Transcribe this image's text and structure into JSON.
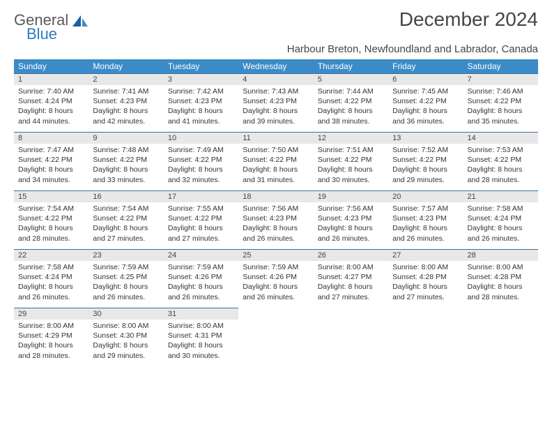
{
  "logo": {
    "line1": "General",
    "line2": "Blue"
  },
  "title": "December 2024",
  "subtitle": "Harbour Breton, Newfoundland and Labrador, Canada",
  "colors": {
    "header_bg": "#3b8bc8",
    "header_text": "#ffffff",
    "daynum_bg": "#e8e8e8",
    "daynum_border": "#3b6f9e",
    "body_text": "#333333",
    "logo_gray": "#5a5a5a",
    "logo_blue": "#2f7bbf"
  },
  "fonts": {
    "title_size_pt": 21,
    "subtitle_size_pt": 11,
    "header_size_pt": 9,
    "cell_size_pt": 8
  },
  "weekdays": [
    "Sunday",
    "Monday",
    "Tuesday",
    "Wednesday",
    "Thursday",
    "Friday",
    "Saturday"
  ],
  "weeks": [
    [
      {
        "n": "1",
        "sr": "Sunrise: 7:40 AM",
        "ss": "Sunset: 4:24 PM",
        "d1": "Daylight: 8 hours",
        "d2": "and 44 minutes."
      },
      {
        "n": "2",
        "sr": "Sunrise: 7:41 AM",
        "ss": "Sunset: 4:23 PM",
        "d1": "Daylight: 8 hours",
        "d2": "and 42 minutes."
      },
      {
        "n": "3",
        "sr": "Sunrise: 7:42 AM",
        "ss": "Sunset: 4:23 PM",
        "d1": "Daylight: 8 hours",
        "d2": "and 41 minutes."
      },
      {
        "n": "4",
        "sr": "Sunrise: 7:43 AM",
        "ss": "Sunset: 4:23 PM",
        "d1": "Daylight: 8 hours",
        "d2": "and 39 minutes."
      },
      {
        "n": "5",
        "sr": "Sunrise: 7:44 AM",
        "ss": "Sunset: 4:22 PM",
        "d1": "Daylight: 8 hours",
        "d2": "and 38 minutes."
      },
      {
        "n": "6",
        "sr": "Sunrise: 7:45 AM",
        "ss": "Sunset: 4:22 PM",
        "d1": "Daylight: 8 hours",
        "d2": "and 36 minutes."
      },
      {
        "n": "7",
        "sr": "Sunrise: 7:46 AM",
        "ss": "Sunset: 4:22 PM",
        "d1": "Daylight: 8 hours",
        "d2": "and 35 minutes."
      }
    ],
    [
      {
        "n": "8",
        "sr": "Sunrise: 7:47 AM",
        "ss": "Sunset: 4:22 PM",
        "d1": "Daylight: 8 hours",
        "d2": "and 34 minutes."
      },
      {
        "n": "9",
        "sr": "Sunrise: 7:48 AM",
        "ss": "Sunset: 4:22 PM",
        "d1": "Daylight: 8 hours",
        "d2": "and 33 minutes."
      },
      {
        "n": "10",
        "sr": "Sunrise: 7:49 AM",
        "ss": "Sunset: 4:22 PM",
        "d1": "Daylight: 8 hours",
        "d2": "and 32 minutes."
      },
      {
        "n": "11",
        "sr": "Sunrise: 7:50 AM",
        "ss": "Sunset: 4:22 PM",
        "d1": "Daylight: 8 hours",
        "d2": "and 31 minutes."
      },
      {
        "n": "12",
        "sr": "Sunrise: 7:51 AM",
        "ss": "Sunset: 4:22 PM",
        "d1": "Daylight: 8 hours",
        "d2": "and 30 minutes."
      },
      {
        "n": "13",
        "sr": "Sunrise: 7:52 AM",
        "ss": "Sunset: 4:22 PM",
        "d1": "Daylight: 8 hours",
        "d2": "and 29 minutes."
      },
      {
        "n": "14",
        "sr": "Sunrise: 7:53 AM",
        "ss": "Sunset: 4:22 PM",
        "d1": "Daylight: 8 hours",
        "d2": "and 28 minutes."
      }
    ],
    [
      {
        "n": "15",
        "sr": "Sunrise: 7:54 AM",
        "ss": "Sunset: 4:22 PM",
        "d1": "Daylight: 8 hours",
        "d2": "and 28 minutes."
      },
      {
        "n": "16",
        "sr": "Sunrise: 7:54 AM",
        "ss": "Sunset: 4:22 PM",
        "d1": "Daylight: 8 hours",
        "d2": "and 27 minutes."
      },
      {
        "n": "17",
        "sr": "Sunrise: 7:55 AM",
        "ss": "Sunset: 4:22 PM",
        "d1": "Daylight: 8 hours",
        "d2": "and 27 minutes."
      },
      {
        "n": "18",
        "sr": "Sunrise: 7:56 AM",
        "ss": "Sunset: 4:23 PM",
        "d1": "Daylight: 8 hours",
        "d2": "and 26 minutes."
      },
      {
        "n": "19",
        "sr": "Sunrise: 7:56 AM",
        "ss": "Sunset: 4:23 PM",
        "d1": "Daylight: 8 hours",
        "d2": "and 26 minutes."
      },
      {
        "n": "20",
        "sr": "Sunrise: 7:57 AM",
        "ss": "Sunset: 4:23 PM",
        "d1": "Daylight: 8 hours",
        "d2": "and 26 minutes."
      },
      {
        "n": "21",
        "sr": "Sunrise: 7:58 AM",
        "ss": "Sunset: 4:24 PM",
        "d1": "Daylight: 8 hours",
        "d2": "and 26 minutes."
      }
    ],
    [
      {
        "n": "22",
        "sr": "Sunrise: 7:58 AM",
        "ss": "Sunset: 4:24 PM",
        "d1": "Daylight: 8 hours",
        "d2": "and 26 minutes."
      },
      {
        "n": "23",
        "sr": "Sunrise: 7:59 AM",
        "ss": "Sunset: 4:25 PM",
        "d1": "Daylight: 8 hours",
        "d2": "and 26 minutes."
      },
      {
        "n": "24",
        "sr": "Sunrise: 7:59 AM",
        "ss": "Sunset: 4:26 PM",
        "d1": "Daylight: 8 hours",
        "d2": "and 26 minutes."
      },
      {
        "n": "25",
        "sr": "Sunrise: 7:59 AM",
        "ss": "Sunset: 4:26 PM",
        "d1": "Daylight: 8 hours",
        "d2": "and 26 minutes."
      },
      {
        "n": "26",
        "sr": "Sunrise: 8:00 AM",
        "ss": "Sunset: 4:27 PM",
        "d1": "Daylight: 8 hours",
        "d2": "and 27 minutes."
      },
      {
        "n": "27",
        "sr": "Sunrise: 8:00 AM",
        "ss": "Sunset: 4:28 PM",
        "d1": "Daylight: 8 hours",
        "d2": "and 27 minutes."
      },
      {
        "n": "28",
        "sr": "Sunrise: 8:00 AM",
        "ss": "Sunset: 4:28 PM",
        "d1": "Daylight: 8 hours",
        "d2": "and 28 minutes."
      }
    ],
    [
      {
        "n": "29",
        "sr": "Sunrise: 8:00 AM",
        "ss": "Sunset: 4:29 PM",
        "d1": "Daylight: 8 hours",
        "d2": "and 28 minutes."
      },
      {
        "n": "30",
        "sr": "Sunrise: 8:00 AM",
        "ss": "Sunset: 4:30 PM",
        "d1": "Daylight: 8 hours",
        "d2": "and 29 minutes."
      },
      {
        "n": "31",
        "sr": "Sunrise: 8:00 AM",
        "ss": "Sunset: 4:31 PM",
        "d1": "Daylight: 8 hours",
        "d2": "and 30 minutes."
      },
      null,
      null,
      null,
      null
    ]
  ]
}
